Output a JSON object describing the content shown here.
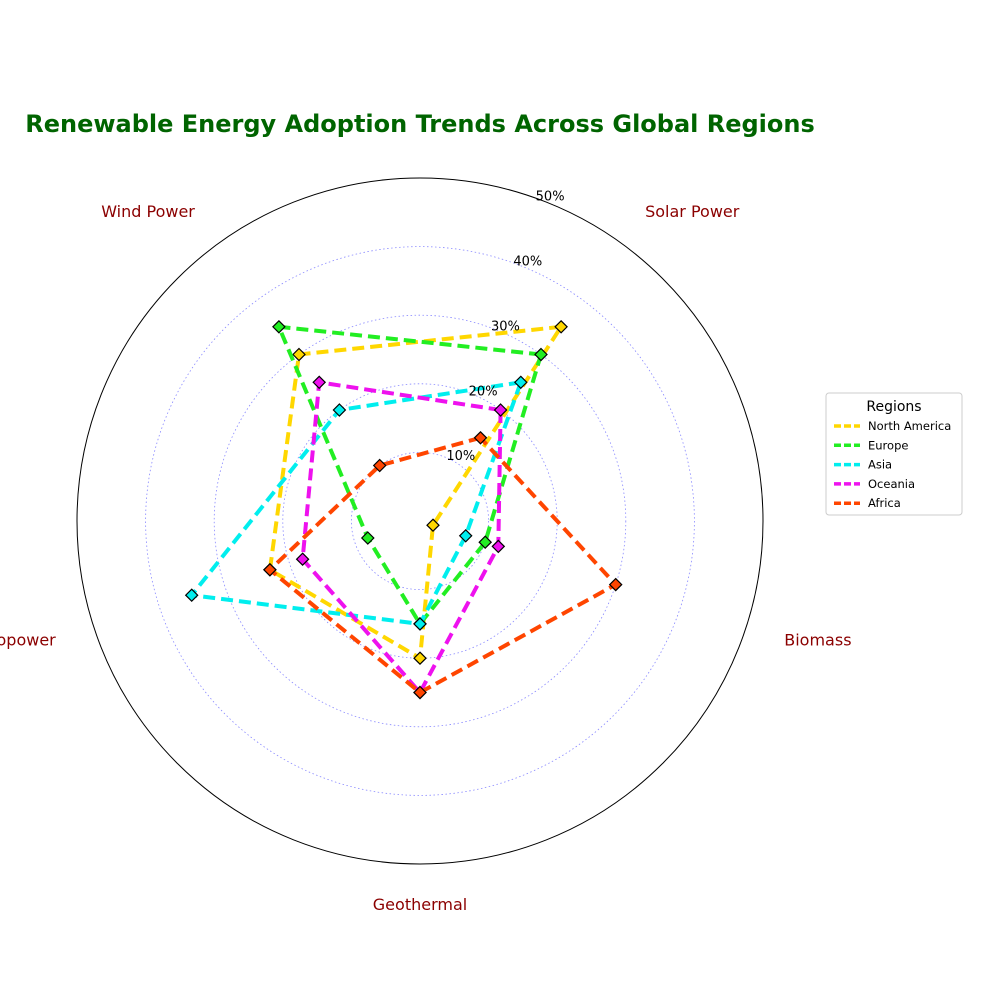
{
  "chart_data": {
    "type": "radar",
    "title": "Renewable Energy Adoption Trends Across Global Regions",
    "categories": [
      "Solar Power",
      "Wind Power",
      "Hydropower",
      "Geothermal",
      "Biomass"
    ],
    "radial_ticks": [
      10,
      20,
      30,
      40,
      50
    ],
    "radial_tick_labels": [
      "10%",
      "20%",
      "30%",
      "40%",
      "50%"
    ],
    "rlim": [
      0,
      50
    ],
    "grid": true,
    "legend": {
      "title": "Regions",
      "placement": "right"
    },
    "series": [
      {
        "name": "North America",
        "color": "#FFD700",
        "values": [
          35,
          30,
          23,
          20,
          2
        ]
      },
      {
        "name": "Europe",
        "color": "#22EE22",
        "values": [
          30,
          35,
          8,
          15,
          10
        ]
      },
      {
        "name": "Asia",
        "color": "#00EEEE",
        "values": [
          25,
          20,
          35,
          15,
          7
        ]
      },
      {
        "name": "Oceania",
        "color": "#EE11EE",
        "values": [
          20,
          25,
          18,
          25,
          12
        ]
      },
      {
        "name": "Africa",
        "color": "#FF4500",
        "values": [
          15,
          10,
          23,
          25,
          30
        ]
      }
    ]
  }
}
